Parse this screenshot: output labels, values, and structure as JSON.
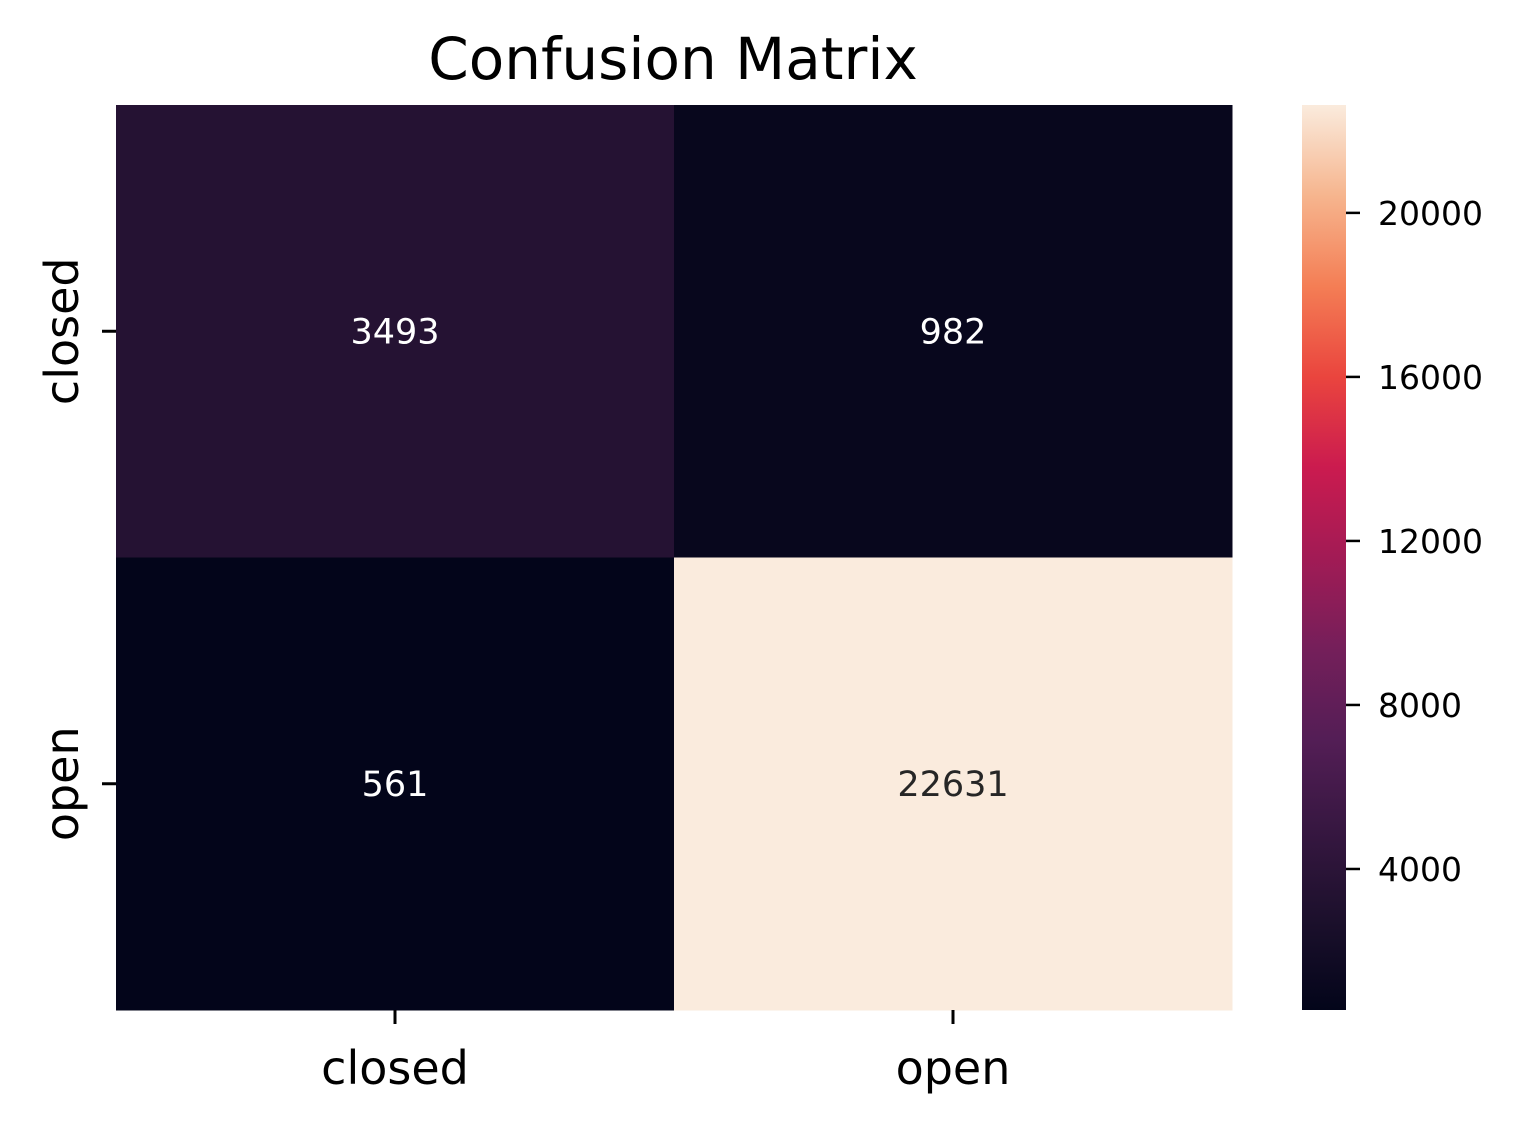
{
  "chart_data": {
    "type": "heatmap",
    "title": "Confusion Matrix",
    "x_categories": [
      "closed",
      "open"
    ],
    "y_categories": [
      "closed",
      "open"
    ],
    "values": [
      [
        3493,
        982
      ],
      [
        561,
        22631
      ]
    ],
    "colormap": "rocket",
    "colorbar": {
      "range": [
        561,
        22631
      ],
      "ticks": [
        4000,
        8000,
        12000,
        16000,
        20000
      ],
      "tick_labels": [
        "4000",
        "8000",
        "12000",
        "16000",
        "20000"
      ]
    },
    "annotation_colors": {
      "dark_cell_text": "#ffffff",
      "light_cell_text": "#262626"
    }
  }
}
